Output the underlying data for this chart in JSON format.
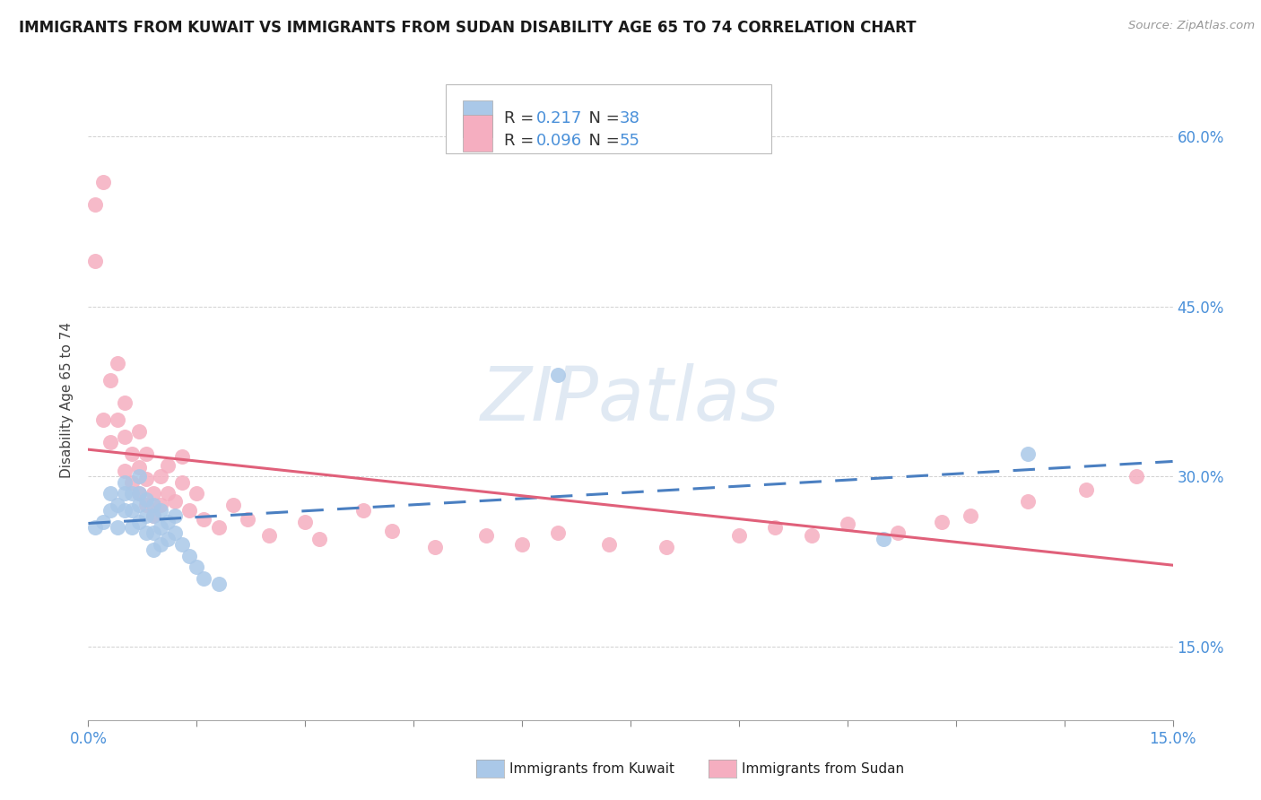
{
  "title": "IMMIGRANTS FROM KUWAIT VS IMMIGRANTS FROM SUDAN DISABILITY AGE 65 TO 74 CORRELATION CHART",
  "source": "Source: ZipAtlas.com",
  "ylabel": "Disability Age 65 to 74",
  "xlim": [
    0.0,
    0.15
  ],
  "ylim": [
    0.085,
    0.65
  ],
  "ytick_positions": [
    0.15,
    0.3,
    0.45,
    0.6
  ],
  "ytick_labels": [
    "15.0%",
    "30.0%",
    "45.0%",
    "60.0%"
  ],
  "kuwait_R": 0.217,
  "kuwait_N": 38,
  "sudan_R": 0.096,
  "sudan_N": 55,
  "kuwait_color": "#aac8e8",
  "sudan_color": "#f5aec0",
  "kuwait_line_color": "#4a7fc1",
  "sudan_line_color": "#e0607a",
  "watermark_color": "#c8d8ea",
  "grid_color": "#cccccc",
  "title_color": "#1a1a1a",
  "source_color": "#999999",
  "tick_label_color": "#4a90d9",
  "kuwait_x": [
    0.001,
    0.002,
    0.003,
    0.003,
    0.004,
    0.004,
    0.005,
    0.005,
    0.005,
    0.006,
    0.006,
    0.006,
    0.007,
    0.007,
    0.007,
    0.007,
    0.008,
    0.008,
    0.008,
    0.009,
    0.009,
    0.009,
    0.009,
    0.01,
    0.01,
    0.01,
    0.011,
    0.011,
    0.012,
    0.012,
    0.013,
    0.014,
    0.015,
    0.016,
    0.018,
    0.065,
    0.11,
    0.13
  ],
  "kuwait_y": [
    0.255,
    0.26,
    0.27,
    0.285,
    0.255,
    0.275,
    0.27,
    0.285,
    0.295,
    0.255,
    0.27,
    0.285,
    0.26,
    0.275,
    0.285,
    0.3,
    0.25,
    0.265,
    0.28,
    0.235,
    0.25,
    0.265,
    0.275,
    0.24,
    0.255,
    0.27,
    0.245,
    0.26,
    0.25,
    0.265,
    0.24,
    0.23,
    0.22,
    0.21,
    0.205,
    0.39,
    0.245,
    0.32
  ],
  "sudan_x": [
    0.001,
    0.001,
    0.002,
    0.002,
    0.003,
    0.003,
    0.004,
    0.004,
    0.005,
    0.005,
    0.005,
    0.006,
    0.006,
    0.007,
    0.007,
    0.007,
    0.008,
    0.008,
    0.008,
    0.009,
    0.009,
    0.01,
    0.01,
    0.011,
    0.011,
    0.012,
    0.013,
    0.013,
    0.014,
    0.015,
    0.016,
    0.018,
    0.02,
    0.022,
    0.025,
    0.03,
    0.032,
    0.038,
    0.042,
    0.048,
    0.055,
    0.06,
    0.065,
    0.072,
    0.08,
    0.09,
    0.095,
    0.1,
    0.105,
    0.112,
    0.118,
    0.122,
    0.13,
    0.138,
    0.145
  ],
  "sudan_y": [
    0.49,
    0.54,
    0.35,
    0.56,
    0.33,
    0.385,
    0.35,
    0.4,
    0.305,
    0.335,
    0.365,
    0.295,
    0.32,
    0.285,
    0.308,
    0.34,
    0.275,
    0.298,
    0.32,
    0.265,
    0.285,
    0.275,
    0.3,
    0.285,
    0.31,
    0.278,
    0.295,
    0.318,
    0.27,
    0.285,
    0.262,
    0.255,
    0.275,
    0.262,
    0.248,
    0.26,
    0.245,
    0.27,
    0.252,
    0.238,
    0.248,
    0.24,
    0.25,
    0.24,
    0.238,
    0.248,
    0.255,
    0.248,
    0.258,
    0.25,
    0.26,
    0.265,
    0.278,
    0.288,
    0.3
  ]
}
